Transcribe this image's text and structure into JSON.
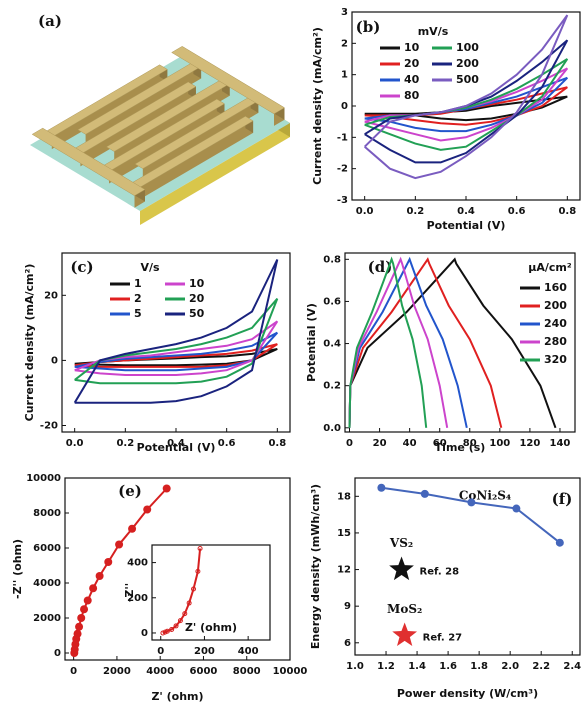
{
  "chart_data": [
    {
      "type": "illustration",
      "label": "(a)"
    },
    {
      "type": "line",
      "label": "(b)",
      "xlabel": "Potential (V)",
      "ylabel": "Current density (mA/cm²)",
      "legend_title": "mV/s",
      "legend_columns": 2,
      "xlim": [
        -0.05,
        0.85
      ],
      "ylim": [
        -3,
        3
      ],
      "xticks": [
        {
          "value": 0,
          "label": "0.0"
        },
        0.2,
        0.4,
        0.6,
        0.8
      ],
      "yticks": [
        -3,
        -2,
        -1,
        0,
        1,
        2,
        3
      ],
      "x": [
        0,
        0.1,
        0.2,
        0.3,
        0.4,
        0.5,
        0.6,
        0.7,
        0.8,
        0.7,
        0.6,
        0.5,
        0.4,
        0.3,
        0.2,
        0.1,
        0
      ],
      "series": [
        {
          "name": "10",
          "color": "#111111",
          "values": [
            -0.25,
            -0.25,
            -0.25,
            -0.2,
            -0.15,
            0,
            0.1,
            0.2,
            0.3,
            -0.05,
            -0.25,
            -0.4,
            -0.45,
            -0.4,
            -0.3,
            -0.3,
            -0.25
          ]
        },
        {
          "name": "20",
          "color": "#e02020",
          "values": [
            -0.3,
            -0.3,
            -0.3,
            -0.25,
            -0.1,
            0.05,
            0.2,
            0.4,
            0.6,
            0,
            -0.3,
            -0.5,
            -0.6,
            -0.55,
            -0.45,
            -0.35,
            -0.3
          ]
        },
        {
          "name": "40",
          "color": "#2255cc",
          "values": [
            -0.4,
            -0.3,
            -0.3,
            -0.2,
            -0.1,
            0.1,
            0.3,
            0.6,
            0.9,
            0.1,
            -0.3,
            -0.6,
            -0.8,
            -0.8,
            -0.7,
            -0.5,
            -0.4
          ]
        },
        {
          "name": "80",
          "color": "#cc44cc",
          "values": [
            -0.5,
            -0.3,
            -0.3,
            -0.2,
            -0.05,
            0.15,
            0.45,
            0.8,
            1.2,
            0.2,
            -0.3,
            -0.7,
            -1.0,
            -1.1,
            -0.9,
            -0.7,
            -0.5
          ]
        },
        {
          "name": "100",
          "color": "#22a055",
          "values": [
            -0.6,
            -0.35,
            -0.3,
            -0.2,
            -0.05,
            0.2,
            0.55,
            1.0,
            1.5,
            0.3,
            -0.3,
            -0.8,
            -1.3,
            -1.4,
            -1.2,
            -0.9,
            -0.6
          ]
        },
        {
          "name": "200",
          "color": "#1a237e",
          "values": [
            -0.9,
            -0.4,
            -0.3,
            -0.2,
            0,
            0.3,
            0.8,
            1.4,
            2.1,
            0.6,
            -0.3,
            -0.9,
            -1.5,
            -1.8,
            -1.8,
            -1.4,
            -0.9
          ]
        },
        {
          "name": "500",
          "color": "#7a5cc0",
          "values": [
            -1.3,
            -0.5,
            -0.3,
            -0.2,
            0,
            0.4,
            1.0,
            1.8,
            2.9,
            1.0,
            -0.2,
            -1.0,
            -1.6,
            -2.1,
            -2.3,
            -2.0,
            -1.3
          ]
        }
      ]
    },
    {
      "type": "line",
      "label": "(c)",
      "xlabel": "Potential (V)",
      "ylabel": "Current density (mA/cm²)",
      "legend_title": "V/s",
      "legend_columns": 2,
      "xlim": [
        -0.05,
        0.85
      ],
      "ylim": [
        -22,
        33
      ],
      "xticks": [
        {
          "value": 0,
          "label": "0.0"
        },
        0.2,
        0.4,
        0.6,
        0.8
      ],
      "yticks": [
        -20,
        0,
        20
      ],
      "x": [
        0,
        0.1,
        0.2,
        0.3,
        0.4,
        0.5,
        0.6,
        0.7,
        0.8,
        0.7,
        0.6,
        0.5,
        0.4,
        0.3,
        0.2,
        0.1,
        0
      ],
      "series": [
        {
          "name": "1",
          "color": "#111111",
          "values": [
            -1,
            -0.5,
            0,
            0.3,
            0.6,
            1,
            1.3,
            2,
            3.5,
            0,
            -1,
            -1.3,
            -1.5,
            -1.5,
            -1.5,
            -1.3,
            -1
          ]
        },
        {
          "name": "2",
          "color": "#e02020",
          "values": [
            -1.5,
            -0.5,
            0,
            0.5,
            1,
            1.5,
            2,
            3,
            5,
            0,
            -1.5,
            -2,
            -2,
            -2,
            -2,
            -2,
            -1.5
          ]
        },
        {
          "name": "5",
          "color": "#2255cc",
          "values": [
            -2,
            -0.5,
            0.5,
            1,
            1.5,
            2,
            3,
            4.5,
            8.5,
            0,
            -2,
            -2.5,
            -3,
            -3,
            -3,
            -2.5,
            -2
          ]
        },
        {
          "name": "10",
          "color": "#cc44cc",
          "values": [
            -3,
            0,
            1,
            1.5,
            2.5,
            3.5,
            4.5,
            6.5,
            12,
            0,
            -3,
            -4,
            -4.5,
            -4.5,
            -4.5,
            -4,
            -3
          ]
        },
        {
          "name": "20",
          "color": "#22a055",
          "values": [
            -6,
            0,
            1.5,
            2.5,
            3.5,
            5,
            7,
            10,
            19,
            -1,
            -5,
            -6.5,
            -7,
            -7,
            -7,
            -7,
            -6
          ]
        },
        {
          "name": "50",
          "color": "#1a237e",
          "values": [
            -13,
            0,
            2,
            3.5,
            5,
            7,
            10,
            15,
            31,
            -3,
            -8,
            -11,
            -12.5,
            -13,
            -13,
            -13,
            -13
          ]
        }
      ]
    },
    {
      "type": "line",
      "label": "(d)",
      "xlabel": "Time (s)",
      "ylabel": "Potential (V)",
      "legend_title": "μA/cm²",
      "legend_columns": 1,
      "xlim": [
        -3,
        150
      ],
      "ylim": [
        -0.02,
        0.83
      ],
      "xticks": [
        0,
        20,
        40,
        60,
        80,
        100,
        120,
        140
      ],
      "yticks": [
        {
          "value": 0,
          "label": "0.0"
        },
        0.2,
        0.4,
        0.6,
        0.8
      ],
      "series": [
        {
          "name": "160",
          "color": "#111111",
          "x": [
            0,
            0.5,
            12,
            38,
            70,
            71,
            89,
            108,
            127,
            137
          ],
          "values": [
            0,
            0.2,
            0.38,
            0.55,
            0.8,
            0.78,
            0.58,
            0.42,
            0.2,
            0
          ]
        },
        {
          "name": "200",
          "color": "#e02020",
          "x": [
            0,
            0.5,
            9,
            28,
            52,
            53,
            66,
            80,
            94,
            101
          ],
          "values": [
            0,
            0.2,
            0.38,
            0.55,
            0.8,
            0.78,
            0.58,
            0.42,
            0.2,
            0
          ]
        },
        {
          "name": "240",
          "color": "#2255cc",
          "x": [
            0,
            0.5,
            7,
            22,
            40,
            41,
            51,
            62,
            72,
            78
          ],
          "values": [
            0,
            0.2,
            0.38,
            0.55,
            0.8,
            0.78,
            0.58,
            0.42,
            0.2,
            0
          ]
        },
        {
          "name": "280",
          "color": "#cc44cc",
          "x": [
            0,
            0.5,
            6,
            18,
            34,
            35,
            43,
            52,
            60,
            65
          ],
          "values": [
            0,
            0.2,
            0.38,
            0.55,
            0.8,
            0.78,
            0.58,
            0.42,
            0.2,
            0
          ]
        },
        {
          "name": "320",
          "color": "#22a055",
          "x": [
            0,
            0.5,
            5,
            15,
            28,
            29,
            35,
            42,
            48,
            51
          ],
          "values": [
            0,
            0.2,
            0.38,
            0.55,
            0.8,
            0.78,
            0.58,
            0.42,
            0.2,
            0
          ]
        }
      ]
    },
    {
      "type": "scatter",
      "label": "(e)",
      "xlabel": "Z' (ohm)",
      "ylabel": "-Z'' (ohm)",
      "color": "#d62020",
      "xlim": [
        -400,
        10000
      ],
      "ylim": [
        -400,
        10000
      ],
      "xticks": [
        0,
        2000,
        4000,
        6000,
        8000,
        10000
      ],
      "yticks": [
        0,
        2000,
        4000,
        6000,
        8000,
        10000
      ],
      "x": [
        30,
        50,
        80,
        120,
        180,
        250,
        350,
        480,
        650,
        900,
        1200,
        1600,
        2100,
        2700,
        3400,
        4300
      ],
      "values": [
        0,
        200,
        500,
        800,
        1100,
        1500,
        2000,
        2500,
        3000,
        3700,
        4400,
        5200,
        6200,
        7100,
        8200,
        9400
      ],
      "inset": {
        "xlabel": "Z' (ohm)",
        "ylabel": "-Z''",
        "xlim": [
          -40,
          500
        ],
        "ylim": [
          -40,
          500
        ],
        "xticks": [
          0,
          200,
          400
        ],
        "yticks": [
          0,
          200,
          400
        ],
        "x": [
          10,
          20,
          30,
          50,
          70,
          90,
          110,
          130,
          150,
          170,
          180
        ],
        "values": [
          0,
          5,
          10,
          20,
          40,
          70,
          110,
          170,
          250,
          350,
          480
        ]
      }
    },
    {
      "type": "line",
      "label": "(f)",
      "xlabel": "Power density (W/cm³)",
      "ylabel": "Energy density (mWh/cm³)",
      "xlim": [
        1.0,
        2.45
      ],
      "ylim": [
        5,
        19.5
      ],
      "xticks": [
        {
          "value": 1.0,
          "label": "1.0"
        },
        1.2,
        1.4,
        1.6,
        1.8,
        {
          "value": 2.0,
          "label": "2.0"
        },
        2.2,
        2.4
      ],
      "yticks": [
        6,
        9,
        12,
        15,
        18
      ],
      "series": [
        {
          "name": "CoNi₂S₄",
          "color": "#4466bb",
          "x": [
            1.17,
            1.45,
            1.75,
            2.04,
            2.32
          ],
          "values": [
            18.7,
            18.2,
            17.5,
            17.0,
            14.2
          ]
        }
      ],
      "points": [
        {
          "name": "VS₂",
          "ref": "Ref. 28",
          "color": "#111111",
          "x": 1.3,
          "y": 12.0
        },
        {
          "name": "MoS₂",
          "ref": "Ref. 27",
          "color": "#e03030",
          "x": 1.32,
          "y": 6.6
        }
      ]
    }
  ]
}
